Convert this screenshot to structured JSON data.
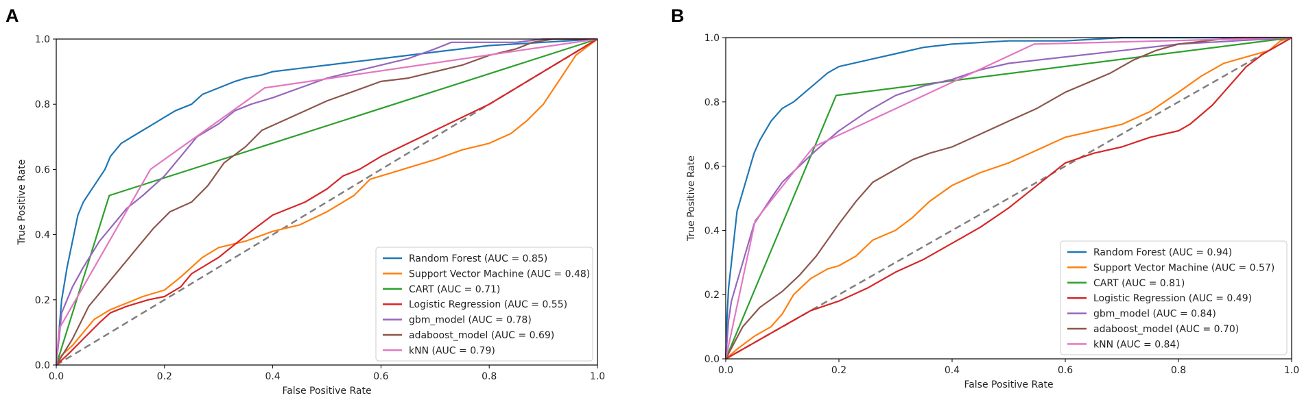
{
  "chart_data": [
    {
      "panel": "A",
      "type": "line",
      "xlabel": "False Positive Rate",
      "ylabel": "True Positive Rate",
      "xlim": [
        0,
        1
      ],
      "ylim": [
        0,
        1
      ],
      "xticks": [
        "0.0",
        "0.2",
        "0.4",
        "0.6",
        "0.8",
        "1.0"
      ],
      "yticks": [
        "0.0",
        "0.2",
        "0.4",
        "0.6",
        "0.8",
        "1.0"
      ],
      "legend_position": "bottom-right",
      "diagonal": {
        "x": [
          0,
          1
        ],
        "y": [
          0,
          1
        ],
        "color": "#7f7f7f",
        "dash": true
      },
      "series": [
        {
          "name": "Random Forest (AUC = 0.85)",
          "color": "#1f77b4",
          "x": [
            0,
            0.005,
            0.01,
            0.02,
            0.03,
            0.04,
            0.05,
            0.07,
            0.09,
            0.1,
            0.12,
            0.15,
            0.18,
            0.2,
            0.22,
            0.25,
            0.27,
            0.3,
            0.33,
            0.35,
            0.38,
            0.4,
            0.45,
            0.5,
            0.55,
            0.6,
            0.7,
            0.8,
            0.9,
            1.0
          ],
          "y": [
            0,
            0.1,
            0.2,
            0.3,
            0.38,
            0.46,
            0.5,
            0.55,
            0.6,
            0.64,
            0.68,
            0.71,
            0.74,
            0.76,
            0.78,
            0.8,
            0.83,
            0.85,
            0.87,
            0.88,
            0.89,
            0.9,
            0.91,
            0.92,
            0.93,
            0.94,
            0.96,
            0.98,
            0.99,
            1.0
          ]
        },
        {
          "name": "Support Vector Machine (AUC = 0.48)",
          "color": "#ff7f0e",
          "x": [
            0,
            0.01,
            0.03,
            0.05,
            0.07,
            0.1,
            0.13,
            0.16,
            0.2,
            0.23,
            0.27,
            0.3,
            0.35,
            0.4,
            0.45,
            0.5,
            0.55,
            0.58,
            0.62,
            0.66,
            0.7,
            0.75,
            0.8,
            0.84,
            0.87,
            0.9,
            0.92,
            0.94,
            0.96,
            1.0
          ],
          "y": [
            0,
            0.03,
            0.06,
            0.1,
            0.14,
            0.17,
            0.19,
            0.21,
            0.23,
            0.27,
            0.33,
            0.36,
            0.38,
            0.41,
            0.43,
            0.47,
            0.52,
            0.57,
            0.59,
            0.61,
            0.63,
            0.66,
            0.68,
            0.71,
            0.75,
            0.8,
            0.85,
            0.9,
            0.95,
            1.0
          ]
        },
        {
          "name": "CART (AUC = 0.71)",
          "color": "#2ca02c",
          "x": [
            0,
            0.098,
            1.0
          ],
          "y": [
            0,
            0.52,
            1.0
          ]
        },
        {
          "name": "Logistic Regression (AUC = 0.55)",
          "color": "#d62728",
          "x": [
            0,
            0.02,
            0.05,
            0.08,
            0.1,
            0.13,
            0.17,
            0.2,
            0.23,
            0.25,
            0.28,
            0.3,
            0.33,
            0.36,
            0.4,
            0.43,
            0.46,
            0.5,
            0.53,
            0.56,
            0.6,
            0.65,
            0.7,
            0.75,
            0.8,
            0.85,
            0.9,
            0.95,
            1.0
          ],
          "y": [
            0,
            0.03,
            0.08,
            0.13,
            0.16,
            0.18,
            0.2,
            0.21,
            0.24,
            0.28,
            0.31,
            0.33,
            0.37,
            0.41,
            0.46,
            0.48,
            0.5,
            0.54,
            0.58,
            0.6,
            0.64,
            0.68,
            0.72,
            0.76,
            0.8,
            0.85,
            0.9,
            0.95,
            1.0
          ]
        },
        {
          "name": "gbm_model (AUC = 0.78)",
          "color": "#9467bd",
          "x": [
            0,
            0.01,
            0.03,
            0.05,
            0.08,
            0.1,
            0.13,
            0.16,
            0.2,
            0.23,
            0.26,
            0.3,
            0.33,
            0.36,
            0.4,
            0.45,
            0.5,
            0.55,
            0.6,
            0.65,
            0.7,
            0.73,
            0.77,
            0.85,
            0.9,
            1.0
          ],
          "y": [
            0,
            0.16,
            0.24,
            0.3,
            0.38,
            0.42,
            0.48,
            0.52,
            0.58,
            0.64,
            0.7,
            0.74,
            0.78,
            0.8,
            0.82,
            0.85,
            0.88,
            0.9,
            0.92,
            0.94,
            0.97,
            0.99,
            0.99,
            0.99,
            1.0,
            1.0
          ]
        },
        {
          "name": "adaboost_model (AUC = 0.69)",
          "color": "#8c564b",
          "x": [
            0,
            0.03,
            0.06,
            0.09,
            0.12,
            0.15,
            0.18,
            0.21,
            0.25,
            0.28,
            0.31,
            0.35,
            0.38,
            0.42,
            0.46,
            0.5,
            0.55,
            0.6,
            0.65,
            0.7,
            0.75,
            0.8,
            0.85,
            0.88,
            0.92,
            1.0
          ],
          "y": [
            0,
            0.08,
            0.18,
            0.24,
            0.3,
            0.36,
            0.42,
            0.47,
            0.5,
            0.55,
            0.62,
            0.67,
            0.72,
            0.75,
            0.78,
            0.81,
            0.84,
            0.87,
            0.88,
            0.9,
            0.92,
            0.95,
            0.97,
            0.99,
            1.0,
            1.0
          ]
        },
        {
          "name": "kNN (AUC = 0.79)",
          "color": "#e377c2",
          "x": [
            0,
            0.005,
            0.174,
            0.385,
            1.0
          ],
          "y": [
            0,
            0.11,
            0.6,
            0.85,
            1.0
          ]
        }
      ]
    },
    {
      "panel": "B",
      "type": "line",
      "xlabel": "False Positive Rate",
      "ylabel": "True Positive Rate",
      "xlim": [
        0,
        1
      ],
      "ylim": [
        0,
        1
      ],
      "xticks": [
        "0.0",
        "0.2",
        "0.4",
        "0.6",
        "0.8",
        "1.0"
      ],
      "yticks": [
        "0.0",
        "0.2",
        "0.4",
        "0.6",
        "0.8",
        "1.0"
      ],
      "legend_position": "bottom-right",
      "diagonal": {
        "x": [
          0,
          1
        ],
        "y": [
          0,
          1
        ],
        "color": "#7f7f7f",
        "dash": true
      },
      "series": [
        {
          "name": "Random Forest (AUC = 0.94)",
          "color": "#1f77b4",
          "x": [
            0,
            0.002,
            0.005,
            0.01,
            0.015,
            0.02,
            0.03,
            0.04,
            0.05,
            0.06,
            0.08,
            0.1,
            0.12,
            0.14,
            0.16,
            0.18,
            0.2,
            0.25,
            0.3,
            0.35,
            0.4,
            0.5,
            0.6,
            0.7,
            0.8,
            0.9,
            1.0
          ],
          "y": [
            0,
            0.12,
            0.22,
            0.3,
            0.38,
            0.46,
            0.52,
            0.58,
            0.64,
            0.68,
            0.74,
            0.78,
            0.8,
            0.83,
            0.86,
            0.89,
            0.91,
            0.93,
            0.95,
            0.97,
            0.98,
            0.99,
            0.99,
            1.0,
            1.0,
            1.0,
            1.0
          ]
        },
        {
          "name": "Support Vector Machine (AUC = 0.57)",
          "color": "#ff7f0e",
          "x": [
            0,
            0.02,
            0.05,
            0.08,
            0.1,
            0.12,
            0.15,
            0.18,
            0.2,
            0.23,
            0.26,
            0.3,
            0.33,
            0.36,
            0.4,
            0.45,
            0.5,
            0.55,
            0.6,
            0.65,
            0.7,
            0.75,
            0.8,
            0.84,
            0.88,
            0.92,
            0.96,
            0.98,
            1.0
          ],
          "y": [
            0,
            0.03,
            0.07,
            0.1,
            0.14,
            0.2,
            0.25,
            0.28,
            0.29,
            0.32,
            0.37,
            0.4,
            0.44,
            0.49,
            0.54,
            0.58,
            0.61,
            0.65,
            0.69,
            0.71,
            0.73,
            0.77,
            0.83,
            0.88,
            0.92,
            0.94,
            0.96,
            0.99,
            1.0
          ]
        },
        {
          "name": "CART (AUC = 0.81)",
          "color": "#2ca02c",
          "x": [
            0,
            0.195,
            1.0
          ],
          "y": [
            0,
            0.82,
            1.0
          ]
        },
        {
          "name": "Logistic Regression (AUC = 0.49)",
          "color": "#d62728",
          "x": [
            0,
            0.05,
            0.1,
            0.15,
            0.2,
            0.25,
            0.3,
            0.35,
            0.4,
            0.45,
            0.5,
            0.55,
            0.6,
            0.65,
            0.7,
            0.75,
            0.8,
            0.82,
            0.84,
            0.86,
            0.88,
            0.9,
            0.92,
            0.95,
            0.98,
            1.0
          ],
          "y": [
            0,
            0.05,
            0.1,
            0.15,
            0.18,
            0.22,
            0.27,
            0.31,
            0.36,
            0.41,
            0.47,
            0.54,
            0.61,
            0.64,
            0.66,
            0.69,
            0.71,
            0.73,
            0.76,
            0.79,
            0.83,
            0.87,
            0.91,
            0.95,
            0.98,
            1.0
          ]
        },
        {
          "name": "gbm_model (AUC = 0.84)",
          "color": "#9467bd",
          "x": [
            0,
            0.005,
            0.01,
            0.02,
            0.03,
            0.05,
            0.08,
            0.1,
            0.13,
            0.16,
            0.2,
            0.25,
            0.3,
            0.35,
            0.4,
            0.45,
            0.5,
            0.55,
            0.6,
            0.7,
            0.8,
            0.9,
            1.0
          ],
          "y": [
            0,
            0.12,
            0.18,
            0.24,
            0.3,
            0.42,
            0.5,
            0.55,
            0.6,
            0.65,
            0.71,
            0.77,
            0.82,
            0.85,
            0.87,
            0.9,
            0.92,
            0.93,
            0.94,
            0.96,
            0.98,
            0.99,
            1.0
          ]
        },
        {
          "name": "adaboost_model (AUC = 0.70)",
          "color": "#8c564b",
          "x": [
            0,
            0.03,
            0.06,
            0.1,
            0.13,
            0.16,
            0.2,
            0.23,
            0.26,
            0.3,
            0.33,
            0.36,
            0.4,
            0.45,
            0.5,
            0.55,
            0.6,
            0.64,
            0.68,
            0.72,
            0.76,
            0.8,
            0.85,
            0.9,
            0.95,
            1.0
          ],
          "y": [
            0,
            0.1,
            0.16,
            0.21,
            0.26,
            0.32,
            0.42,
            0.49,
            0.55,
            0.59,
            0.62,
            0.64,
            0.66,
            0.7,
            0.74,
            0.78,
            0.83,
            0.86,
            0.89,
            0.93,
            0.96,
            0.98,
            0.99,
            1.0,
            1.0,
            1.0
          ]
        },
        {
          "name": "kNN (AUC = 0.84)",
          "color": "#e377c2",
          "x": [
            0,
            0.052,
            0.155,
            0.545,
            1.0
          ],
          "y": [
            0,
            0.43,
            0.66,
            0.98,
            1.0
          ]
        }
      ]
    }
  ]
}
